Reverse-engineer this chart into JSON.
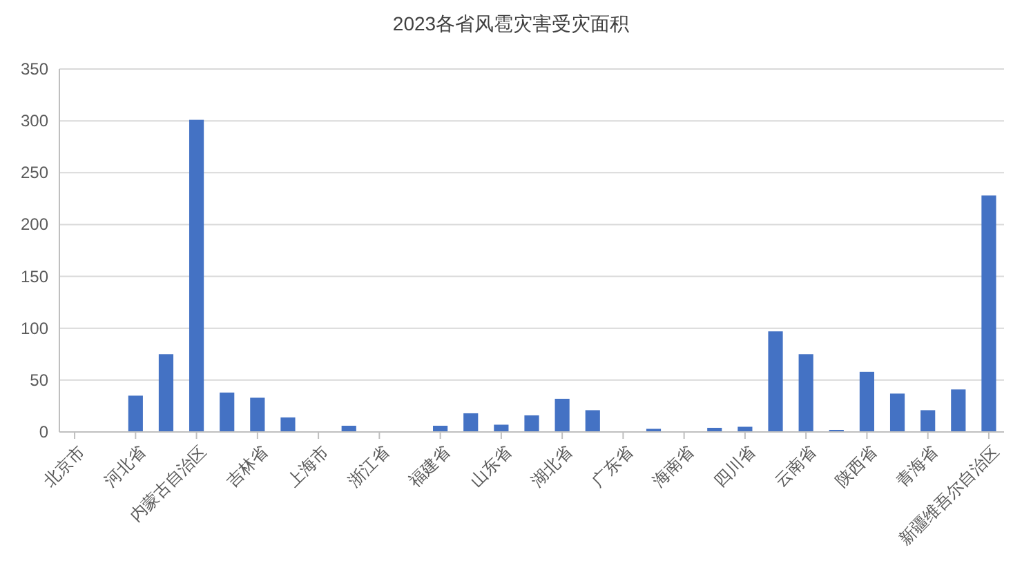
{
  "chart_data": {
    "type": "bar",
    "title": "2023各省风雹灾害受灾面积",
    "categories": [
      "北京市",
      null,
      "河北省",
      null,
      "内蒙古自治区",
      null,
      "吉林省",
      null,
      "上海市",
      null,
      "浙江省",
      null,
      "福建省",
      null,
      "山东省",
      null,
      "湖北省",
      null,
      "广东省",
      null,
      "海南省",
      null,
      "四川省",
      null,
      "云南省",
      null,
      "陕西省",
      null,
      "青海省",
      null,
      "新疆维吾尔自治区"
    ],
    "values": [
      0,
      0,
      35,
      75,
      301,
      38,
      33,
      14,
      0,
      6,
      0,
      0,
      6,
      18,
      7,
      16,
      32,
      21,
      0,
      3,
      0,
      4,
      5,
      97,
      75,
      2,
      58,
      37,
      21,
      41,
      228
    ],
    "color": "#4472c4",
    "ylim": [
      0,
      350
    ],
    "yticks": [
      0,
      50,
      100,
      150,
      200,
      250,
      300,
      350
    ],
    "grid": "y"
  }
}
